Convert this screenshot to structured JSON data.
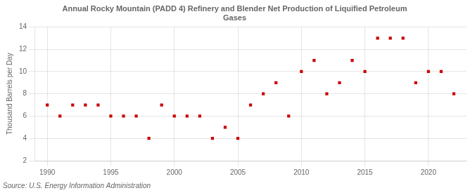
{
  "chart_data": {
    "type": "scatter",
    "title": "Annual Rocky Mountain (PADD 4) Refinery and Blender Net Production of Liquified Petroleum\nGases",
    "ylabel": "Thousand Barrels per Day",
    "annotation": "Source: U.S. Energy Information Administration",
    "x": [
      1990,
      1991,
      1992,
      1993,
      1994,
      1995,
      1996,
      1997,
      1998,
      1999,
      2000,
      2001,
      2002,
      2003,
      2004,
      2005,
      2006,
      2007,
      2008,
      2009,
      2010,
      2011,
      2012,
      2013,
      2014,
      2015,
      2016,
      2017,
      2018,
      2019,
      2020,
      2021,
      2022
    ],
    "values": [
      7,
      6,
      7,
      7,
      7,
      6,
      6,
      6,
      4,
      7,
      6,
      6,
      6,
      4,
      5,
      4,
      7,
      8,
      9,
      6,
      10,
      11,
      8,
      9,
      11,
      10,
      13,
      13,
      13,
      9,
      10,
      10,
      8
    ],
    "color": "#cc0000",
    "marker": "square",
    "xlim": [
      1989,
      2023
    ],
    "xticks": [
      1990,
      1995,
      2000,
      2005,
      2010,
      2015,
      2020
    ],
    "ylim": [
      2,
      14
    ],
    "yticks": [
      2,
      4,
      6,
      8,
      10,
      12,
      14
    ],
    "grid": true
  }
}
